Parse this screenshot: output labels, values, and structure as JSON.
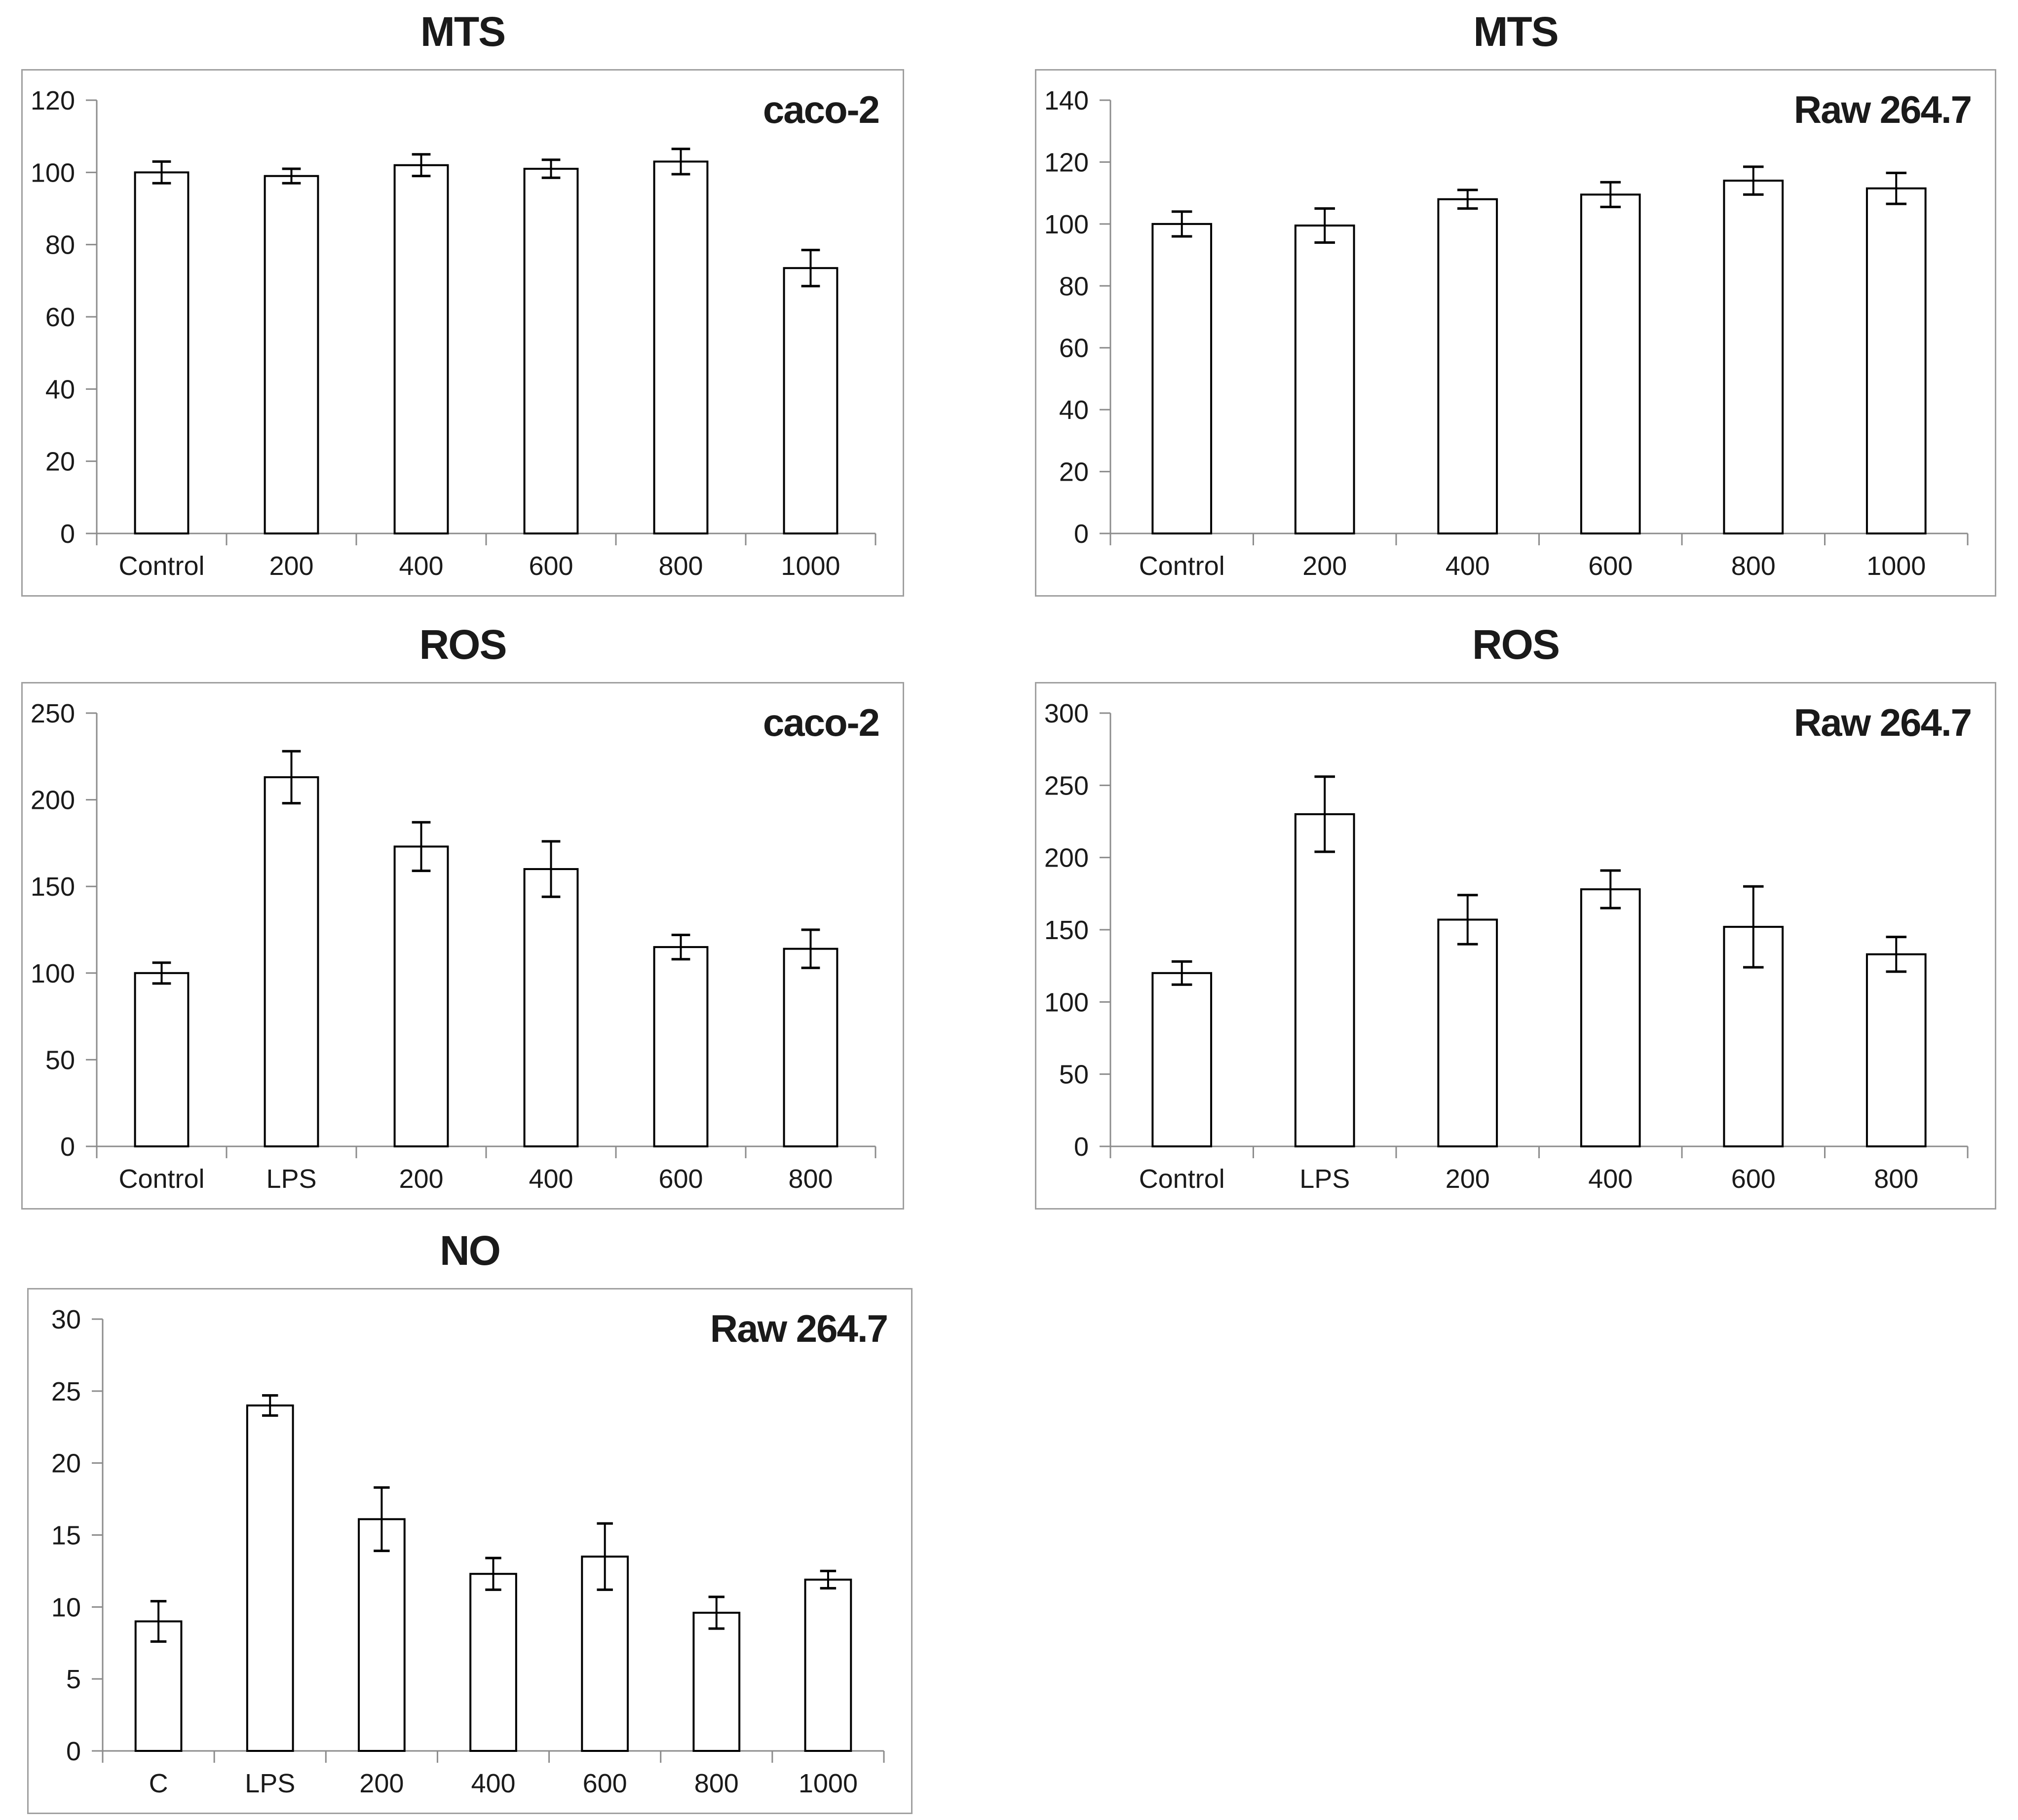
{
  "figure": {
    "background": "#ffffff",
    "description_titles": [
      "MTS",
      "MTS",
      "ROS",
      "ROS",
      "NO"
    ]
  },
  "styles": {
    "frame_border_color": "#a0a0a0",
    "axis_color": "#8c8c8c",
    "bar_fill": "#ffffff",
    "bar_border_color": "#000000",
    "error_bar_color": "#000000",
    "text_color": "#1a1a1a"
  },
  "chart_data": [
    {
      "type": "bar",
      "title": "MTS",
      "annotation": "caco-2",
      "categories": [
        "Control",
        "200",
        "400",
        "600",
        "800",
        "1000"
      ],
      "values": [
        100,
        99,
        102,
        101,
        103,
        73.5
      ],
      "errors": [
        3,
        2,
        3,
        2.5,
        3.5,
        5
      ],
      "ylim": [
        0,
        120
      ],
      "ytick_step": 20,
      "grid": false,
      "legend": "none"
    },
    {
      "type": "bar",
      "title": "MTS",
      "annotation": "Raw 264.7",
      "categories": [
        "Control",
        "200",
        "400",
        "600",
        "800",
        "1000"
      ],
      "values": [
        100,
        99.5,
        108,
        109.5,
        114,
        111.5
      ],
      "errors": [
        4,
        5.5,
        3,
        4,
        4.5,
        5
      ],
      "ylim": [
        0,
        140
      ],
      "ytick_step": 20,
      "grid": false,
      "legend": "none"
    },
    {
      "type": "bar",
      "title": "ROS",
      "annotation": "caco-2",
      "categories": [
        "Control",
        "LPS",
        "200",
        "400",
        "600",
        "800"
      ],
      "values": [
        100,
        213,
        173,
        160,
        115,
        114
      ],
      "errors": [
        6,
        15,
        14,
        16,
        7,
        11
      ],
      "ylim": [
        0,
        250
      ],
      "ytick_step": 50,
      "grid": false,
      "legend": "none"
    },
    {
      "type": "bar",
      "title": "ROS",
      "annotation": "Raw 264.7",
      "categories": [
        "Control",
        "LPS",
        "200",
        "400",
        "600",
        "800"
      ],
      "values": [
        120,
        230,
        157,
        178,
        152,
        133
      ],
      "errors": [
        8,
        26,
        17,
        13,
        28,
        12
      ],
      "ylim": [
        0,
        300
      ],
      "ytick_step": 50,
      "grid": false,
      "legend": "none"
    },
    {
      "type": "bar",
      "title": "NO",
      "annotation": "Raw 264.7",
      "categories": [
        "C",
        "LPS",
        "200",
        "400",
        "600",
        "800",
        "1000"
      ],
      "values": [
        9,
        24,
        16.1,
        12.3,
        13.5,
        9.6,
        11.9
      ],
      "errors": [
        1.4,
        0.7,
        2.2,
        1.1,
        2.3,
        1.1,
        0.6
      ],
      "ylim": [
        0,
        30
      ],
      "ytick_step": 5,
      "grid": false,
      "legend": "none"
    }
  ]
}
